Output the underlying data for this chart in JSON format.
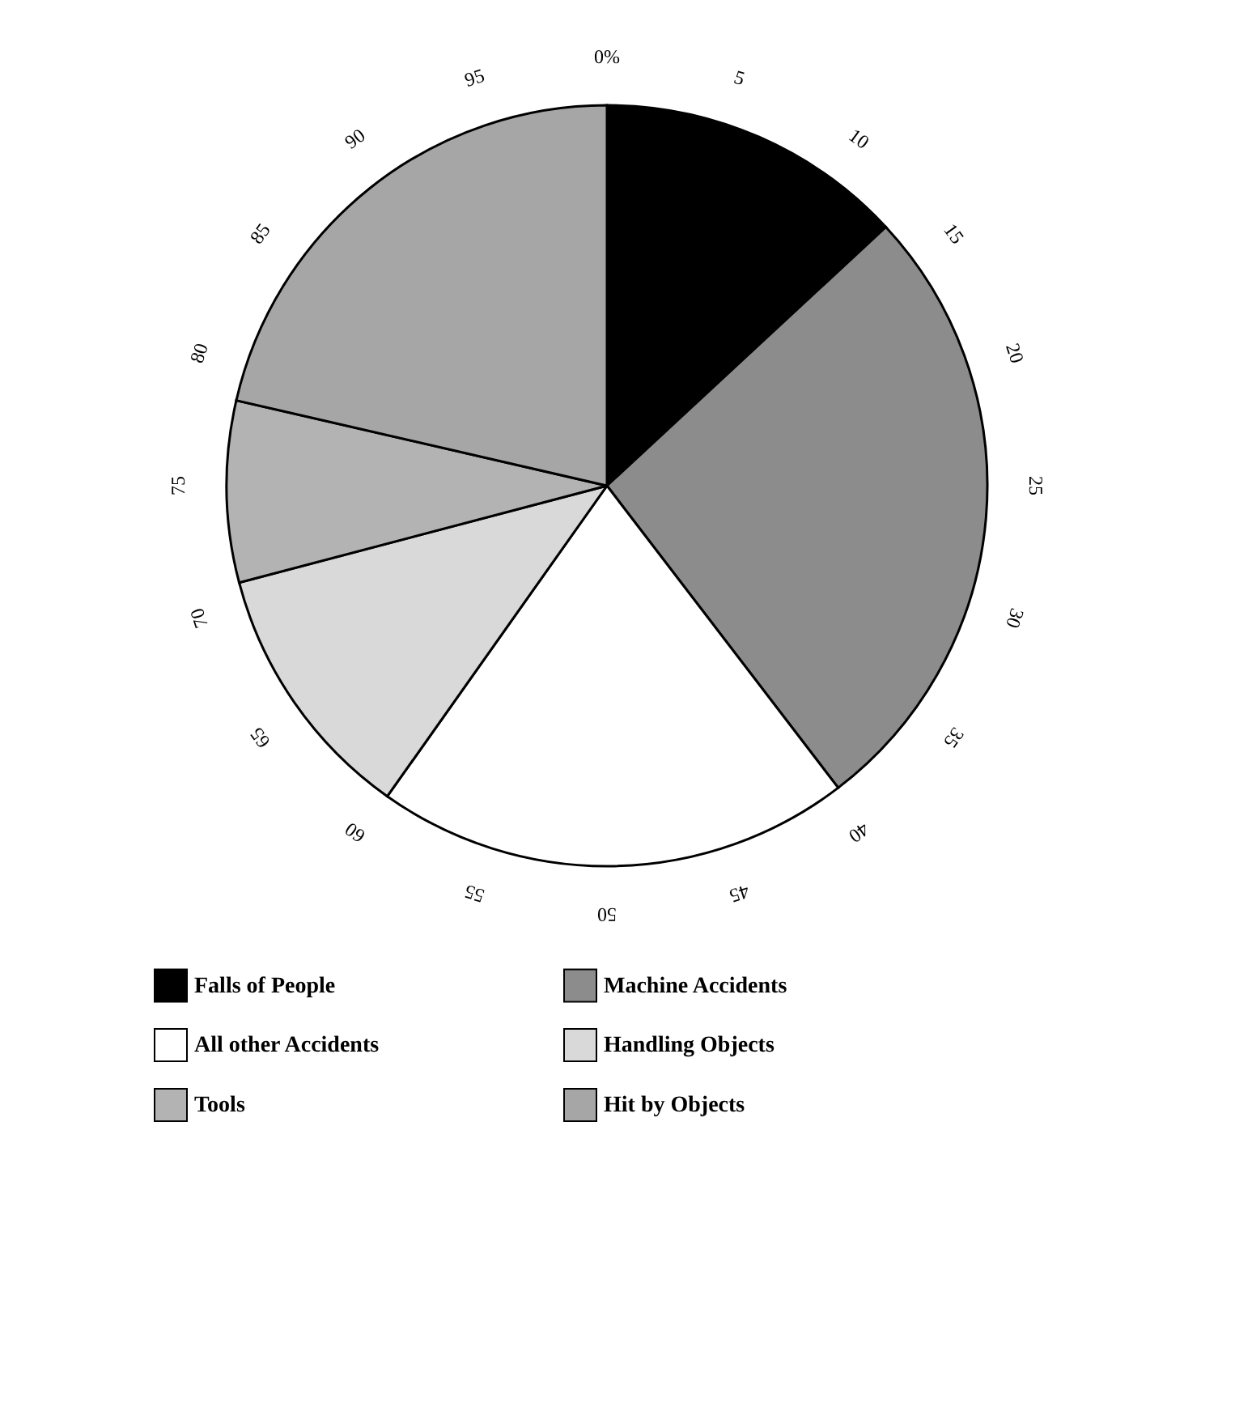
{
  "chart_data": {
    "type": "pie",
    "categories": [
      "Falls of People",
      "Machine Accidents",
      "All other Accidents",
      "Handling Objects",
      "Tools",
      "Hit by Objects"
    ],
    "values": [
      13.1,
      26.5,
      20.2,
      11.1,
      7.7,
      21.4
    ],
    "colors": [
      "#000000",
      "#8c8c8c",
      "#ffffff",
      "#d9d9d9",
      "#b3b3b3",
      "#a6a6a6"
    ],
    "annotations": [
      "0%",
      "5",
      "10",
      "15",
      "20",
      "25",
      "30",
      "35",
      "40",
      "45",
      "50",
      "55",
      "60",
      "65",
      "70",
      "75",
      "80",
      "85",
      "90",
      "95"
    ],
    "legend": "bottom"
  }
}
